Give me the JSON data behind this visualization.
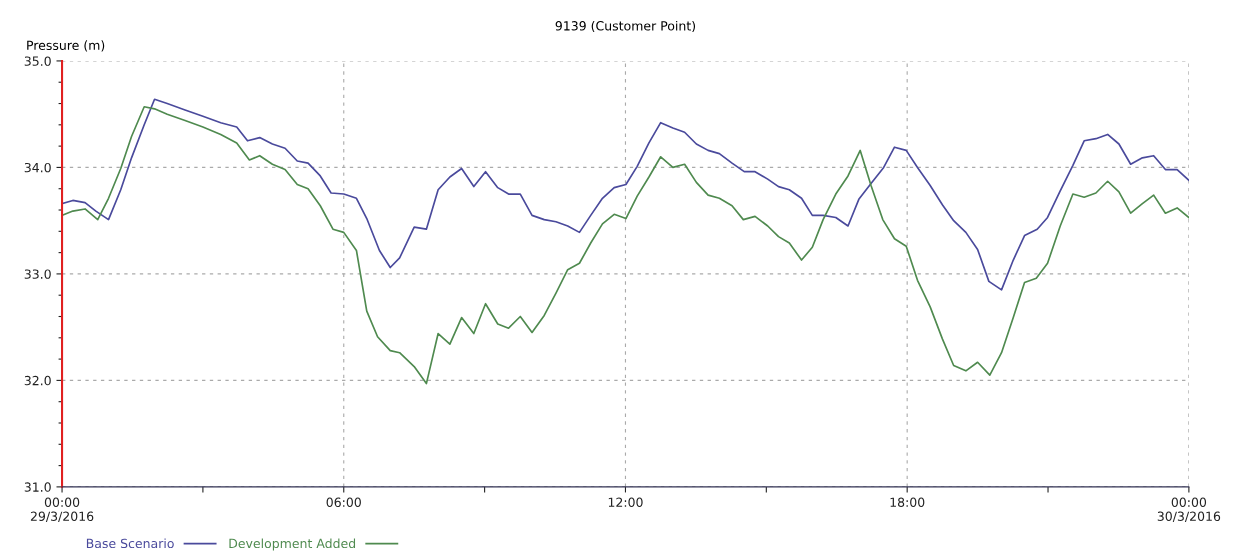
{
  "chart_data": {
    "type": "line",
    "title": "9139 (Customer Point)",
    "ylabel": "Pressure (m)",
    "xlim": [
      0,
      24
    ],
    "ylim": [
      31,
      35
    ],
    "xticks": [
      {
        "value": 0,
        "label": "00:00\n29/3/2016"
      },
      {
        "value": 3,
        "label": null
      },
      {
        "value": 6,
        "label": "06:00"
      },
      {
        "value": 9,
        "label": null
      },
      {
        "value": 12,
        "label": "12:00"
      },
      {
        "value": 15,
        "label": null
      },
      {
        "value": 18,
        "label": "18:00"
      },
      {
        "value": 21,
        "label": null
      },
      {
        "value": 24,
        "label": "00:00\n30/3/2016"
      }
    ],
    "yticks": [
      {
        "value": 31,
        "label": "31.0"
      },
      {
        "value": 31.2,
        "label": null
      },
      {
        "value": 31.4,
        "label": null
      },
      {
        "value": 31.6,
        "label": null
      },
      {
        "value": 31.8,
        "label": null
      },
      {
        "value": 32,
        "label": "32.0"
      },
      {
        "value": 32.2,
        "label": null
      },
      {
        "value": 32.4,
        "label": null
      },
      {
        "value": 32.6,
        "label": null
      },
      {
        "value": 32.8,
        "label": null
      },
      {
        "value": 33,
        "label": "33.0"
      },
      {
        "value": 33.2,
        "label": null
      },
      {
        "value": 33.4,
        "label": null
      },
      {
        "value": 33.6,
        "label": null
      },
      {
        "value": 33.8,
        "label": null
      },
      {
        "value": 34,
        "label": "34.0"
      },
      {
        "value": 34.2,
        "label": null
      },
      {
        "value": 34.4,
        "label": null
      },
      {
        "value": 34.6,
        "label": null
      },
      {
        "value": 34.8,
        "label": null
      },
      {
        "value": 35,
        "label": "35.0"
      }
    ],
    "grid": true,
    "legend": "bottom left",
    "line_style": "solid",
    "marker": "none",
    "series": [
      {
        "name": "Base Scenario",
        "color": "#4a4a9c",
        "x": [
          0,
          0.23,
          0.49,
          0.72,
          0.99,
          1.25,
          1.48,
          1.75,
          1.97,
          2.24,
          2.62,
          3.0,
          3.38,
          3.72,
          3.95,
          4.21,
          4.48,
          4.75,
          5.01,
          5.24,
          5.5,
          5.73,
          6.0,
          6.27,
          6.49,
          6.76,
          6.99,
          7.19,
          7.5,
          7.76,
          8.01,
          8.26,
          8.51,
          8.77,
          9.02,
          9.28,
          9.51,
          9.76,
          10.01,
          10.27,
          10.52,
          10.77,
          11.02,
          11.26,
          11.51,
          11.76,
          12.01,
          12.25,
          12.5,
          12.75,
          13.01,
          13.26,
          13.51,
          13.76,
          14.0,
          14.27,
          14.53,
          14.76,
          15.03,
          15.26,
          15.49,
          15.75,
          15.98,
          16.21,
          16.48,
          16.74,
          16.97,
          17.23,
          17.5,
          17.73,
          17.98,
          18.22,
          18.49,
          18.75,
          18.99,
          19.25,
          19.5,
          19.74,
          20.01,
          20.26,
          20.5,
          20.77,
          20.99,
          21.26,
          21.53,
          21.77,
          22.02,
          22.27,
          22.51,
          22.76,
          23.01,
          23.25,
          23.5,
          23.75,
          24.0
        ],
        "values": [
          33.66,
          33.69,
          33.67,
          33.59,
          33.51,
          33.79,
          34.09,
          34.4,
          34.64,
          34.6,
          34.54,
          34.48,
          34.42,
          34.38,
          34.25,
          34.28,
          34.22,
          34.18,
          34.06,
          34.04,
          33.92,
          33.76,
          33.75,
          33.71,
          33.52,
          33.22,
          33.06,
          33.15,
          33.44,
          33.42,
          33.79,
          33.91,
          33.99,
          33.82,
          33.96,
          33.81,
          33.75,
          33.75,
          33.55,
          33.51,
          33.49,
          33.45,
          33.39,
          33.55,
          33.71,
          33.81,
          33.84,
          34.01,
          34.23,
          34.42,
          34.37,
          34.33,
          34.22,
          34.16,
          34.13,
          34.04,
          33.96,
          33.96,
          33.89,
          33.82,
          33.79,
          33.71,
          33.55,
          33.55,
          33.53,
          33.45,
          33.7,
          33.85,
          34.0,
          34.19,
          34.16,
          34.0,
          33.83,
          33.65,
          33.5,
          33.39,
          33.23,
          32.93,
          32.85,
          33.13,
          33.36,
          33.42,
          33.53,
          33.78,
          34.02,
          34.25,
          34.27,
          34.31,
          34.22,
          34.03,
          34.09,
          34.11,
          33.98,
          33.98,
          33.88
        ]
      },
      {
        "name": "Development Added",
        "color": "#4f8a4f",
        "x": [
          0,
          0.23,
          0.49,
          0.76,
          0.99,
          1.25,
          1.48,
          1.75,
          1.97,
          2.24,
          2.62,
          3.0,
          3.38,
          3.72,
          3.99,
          4.21,
          4.48,
          4.75,
          5.01,
          5.24,
          5.5,
          5.77,
          6.0,
          6.27,
          6.49,
          6.72,
          6.99,
          7.19,
          7.5,
          7.76,
          8.01,
          8.26,
          8.51,
          8.77,
          9.02,
          9.28,
          9.51,
          9.76,
          10.01,
          10.27,
          10.52,
          10.77,
          11.02,
          11.26,
          11.51,
          11.76,
          12.01,
          12.25,
          12.5,
          12.75,
          13.01,
          13.26,
          13.51,
          13.76,
          14.0,
          14.27,
          14.51,
          14.76,
          15.03,
          15.26,
          15.49,
          15.75,
          15.98,
          16.21,
          16.48,
          16.74,
          17.0,
          17.23,
          17.48,
          17.73,
          17.98,
          18.22,
          18.49,
          18.75,
          18.99,
          19.25,
          19.5,
          19.76,
          20.01,
          20.26,
          20.5,
          20.75,
          20.99,
          21.26,
          21.53,
          21.77,
          22.02,
          22.27,
          22.51,
          22.76,
          23.01,
          23.25,
          23.5,
          23.75,
          24.0
        ],
        "values": [
          33.55,
          33.59,
          33.61,
          33.51,
          33.71,
          33.99,
          34.29,
          34.57,
          34.55,
          34.5,
          34.44,
          34.38,
          34.31,
          34.23,
          34.07,
          34.11,
          34.03,
          33.98,
          33.84,
          33.8,
          33.64,
          33.42,
          33.39,
          33.22,
          32.65,
          32.41,
          32.28,
          32.26,
          32.13,
          31.97,
          32.44,
          32.34,
          32.59,
          32.44,
          32.72,
          32.53,
          32.49,
          32.6,
          32.45,
          32.61,
          32.82,
          33.04,
          33.1,
          33.29,
          33.47,
          33.56,
          33.52,
          33.73,
          33.91,
          34.1,
          34.0,
          34.03,
          33.86,
          33.74,
          33.71,
          33.64,
          33.51,
          33.54,
          33.45,
          33.35,
          33.29,
          33.13,
          33.25,
          33.51,
          33.75,
          33.92,
          34.16,
          33.83,
          33.51,
          33.33,
          33.26,
          32.94,
          32.69,
          32.39,
          32.14,
          32.09,
          32.17,
          32.05,
          32.26,
          32.59,
          32.92,
          32.96,
          33.1,
          33.45,
          33.75,
          33.72,
          33.76,
          33.87,
          33.77,
          33.57,
          33.66,
          33.74,
          33.57,
          33.62,
          33.53
        ]
      }
    ]
  }
}
